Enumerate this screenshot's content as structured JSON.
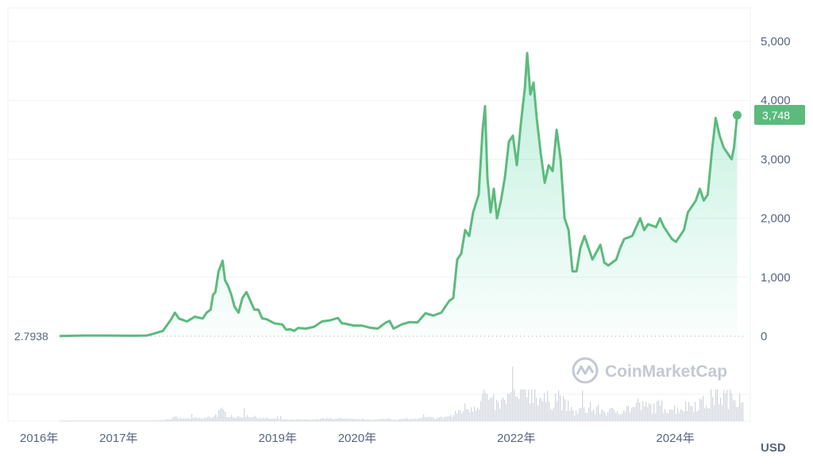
{
  "chart_data": {
    "type": "area",
    "title": "",
    "xlabel": "",
    "ylabel": "",
    "currency": "USD",
    "watermark": "CoinMarketCap",
    "start_value_label": "2.7938",
    "current_value_label": "3,748",
    "current_value": 3748,
    "ylim": [
      0,
      5500
    ],
    "y_ticks": [
      0,
      1000,
      2000,
      3000,
      4000,
      5000
    ],
    "y_tick_labels": [
      "0",
      "1,000",
      "2,000",
      "3,000",
      "4,000",
      "5,000"
    ],
    "x_ticks": [
      {
        "label": "2016年",
        "t": 2016.0
      },
      {
        "label": "2017年",
        "t": 2017.0
      },
      {
        "label": "2019年",
        "t": 2019.0
      },
      {
        "label": "2020年",
        "t": 2020.0
      },
      {
        "label": "2022年",
        "t": 2022.0
      },
      {
        "label": "2024年",
        "t": 2024.0
      }
    ],
    "xlim": [
      2016.0,
      2024.6
    ],
    "series": [
      {
        "values": [
          [
            2016.0,
            3
          ],
          [
            2016.3,
            12
          ],
          [
            2016.6,
            12
          ],
          [
            2016.9,
            8
          ],
          [
            2017.1,
            12
          ],
          [
            2017.2,
            50
          ],
          [
            2017.3,
            90
          ],
          [
            2017.4,
            280
          ],
          [
            2017.45,
            400
          ],
          [
            2017.5,
            300
          ],
          [
            2017.6,
            250
          ],
          [
            2017.7,
            330
          ],
          [
            2017.8,
            300
          ],
          [
            2017.85,
            400
          ],
          [
            2017.9,
            450
          ],
          [
            2017.93,
            700
          ],
          [
            2017.96,
            750
          ],
          [
            2018.0,
            1100
          ],
          [
            2018.05,
            1280
          ],
          [
            2018.08,
            950
          ],
          [
            2018.12,
            850
          ],
          [
            2018.16,
            700
          ],
          [
            2018.2,
            500
          ],
          [
            2018.25,
            400
          ],
          [
            2018.3,
            650
          ],
          [
            2018.35,
            750
          ],
          [
            2018.4,
            600
          ],
          [
            2018.45,
            450
          ],
          [
            2018.5,
            450
          ],
          [
            2018.55,
            300
          ],
          [
            2018.6,
            290
          ],
          [
            2018.7,
            220
          ],
          [
            2018.8,
            200
          ],
          [
            2018.85,
            110
          ],
          [
            2018.9,
            120
          ],
          [
            2018.95,
            90
          ],
          [
            2019.0,
            140
          ],
          [
            2019.1,
            130
          ],
          [
            2019.2,
            160
          ],
          [
            2019.3,
            250
          ],
          [
            2019.4,
            270
          ],
          [
            2019.5,
            310
          ],
          [
            2019.55,
            220
          ],
          [
            2019.6,
            210
          ],
          [
            2019.7,
            180
          ],
          [
            2019.8,
            180
          ],
          [
            2019.9,
            145
          ],
          [
            2020.0,
            130
          ],
          [
            2020.1,
            230
          ],
          [
            2020.15,
            260
          ],
          [
            2020.2,
            130
          ],
          [
            2020.3,
            200
          ],
          [
            2020.4,
            240
          ],
          [
            2020.5,
            235
          ],
          [
            2020.6,
            390
          ],
          [
            2020.7,
            350
          ],
          [
            2020.8,
            400
          ],
          [
            2020.9,
            600
          ],
          [
            2020.95,
            650
          ],
          [
            2021.0,
            1300
          ],
          [
            2021.05,
            1400
          ],
          [
            2021.1,
            1800
          ],
          [
            2021.15,
            1700
          ],
          [
            2021.2,
            2100
          ],
          [
            2021.27,
            2400
          ],
          [
            2021.32,
            3500
          ],
          [
            2021.35,
            3900
          ],
          [
            2021.38,
            2700
          ],
          [
            2021.42,
            2100
          ],
          [
            2021.46,
            2500
          ],
          [
            2021.5,
            2000
          ],
          [
            2021.55,
            2300
          ],
          [
            2021.6,
            2700
          ],
          [
            2021.65,
            3300
          ],
          [
            2021.7,
            3400
          ],
          [
            2021.75,
            2900
          ],
          [
            2021.8,
            3600
          ],
          [
            2021.85,
            4200
          ],
          [
            2021.88,
            4800
          ],
          [
            2021.92,
            4100
          ],
          [
            2021.96,
            4300
          ],
          [
            2022.0,
            3700
          ],
          [
            2022.05,
            3100
          ],
          [
            2022.1,
            2600
          ],
          [
            2022.15,
            2900
          ],
          [
            2022.2,
            2800
          ],
          [
            2022.25,
            3500
          ],
          [
            2022.3,
            3000
          ],
          [
            2022.35,
            2000
          ],
          [
            2022.4,
            1800
          ],
          [
            2022.45,
            1100
          ],
          [
            2022.5,
            1100
          ],
          [
            2022.55,
            1500
          ],
          [
            2022.6,
            1700
          ],
          [
            2022.7,
            1300
          ],
          [
            2022.8,
            1550
          ],
          [
            2022.85,
            1250
          ],
          [
            2022.9,
            1200
          ],
          [
            2023.0,
            1300
          ],
          [
            2023.05,
            1500
          ],
          [
            2023.1,
            1650
          ],
          [
            2023.2,
            1700
          ],
          [
            2023.3,
            2000
          ],
          [
            2023.35,
            1800
          ],
          [
            2023.4,
            1900
          ],
          [
            2023.5,
            1850
          ],
          [
            2023.55,
            2000
          ],
          [
            2023.6,
            1850
          ],
          [
            2023.7,
            1650
          ],
          [
            2023.75,
            1600
          ],
          [
            2023.85,
            1800
          ],
          [
            2023.9,
            2100
          ],
          [
            2024.0,
            2300
          ],
          [
            2024.05,
            2500
          ],
          [
            2024.1,
            2300
          ],
          [
            2024.15,
            2400
          ],
          [
            2024.2,
            3100
          ],
          [
            2024.25,
            3700
          ],
          [
            2024.3,
            3400
          ],
          [
            2024.35,
            3200
          ],
          [
            2024.4,
            3100
          ],
          [
            2024.45,
            3000
          ],
          [
            2024.48,
            3200
          ],
          [
            2024.52,
            3748
          ]
        ]
      }
    ]
  }
}
